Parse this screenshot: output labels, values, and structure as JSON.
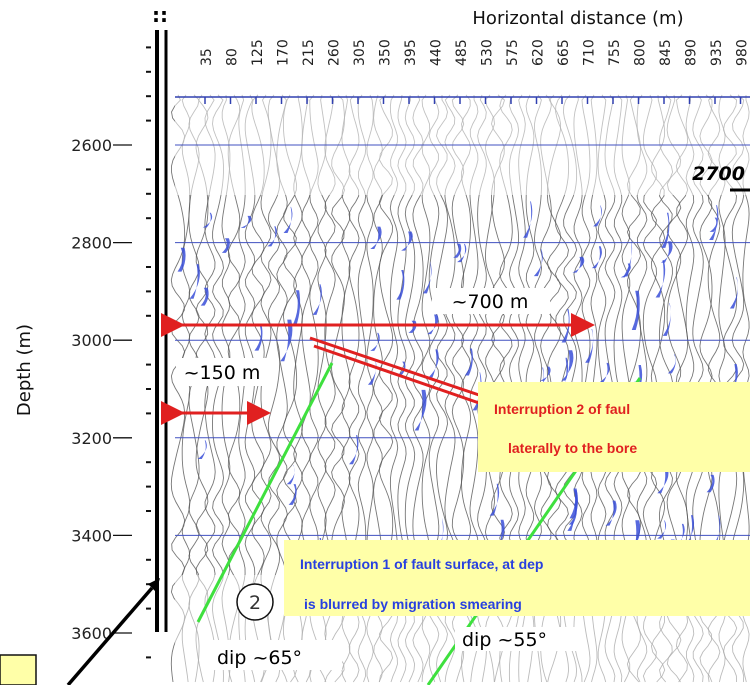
{
  "marker": "::",
  "x_axis": {
    "title": "Horizontal distance (m)",
    "labels": [
      "35",
      "80",
      "125",
      "170",
      "215",
      "260",
      "305",
      "350",
      "395",
      "440",
      "485",
      "530",
      "575",
      "620",
      "665",
      "710",
      "755",
      "800",
      "845",
      "890",
      "935",
      "980"
    ]
  },
  "y_axis": {
    "title": "Depth (m)",
    "labels": [
      "2600",
      "2800",
      "3000",
      "3200",
      "3400",
      "3600"
    ]
  },
  "annotations": {
    "depth_marker": "2700",
    "width_700": "~700 m",
    "width_150": "~150 m",
    "interruption2": [
      "Interruption 2 of faul",
      "laterally to the bore"
    ],
    "interruption1": [
      "Interruption 1 of fault surface, at dep",
      "is blurred by migration smearing"
    ],
    "dip_left": "dip ~65°",
    "dip_right": "dip ~55°",
    "circle": "2"
  }
}
